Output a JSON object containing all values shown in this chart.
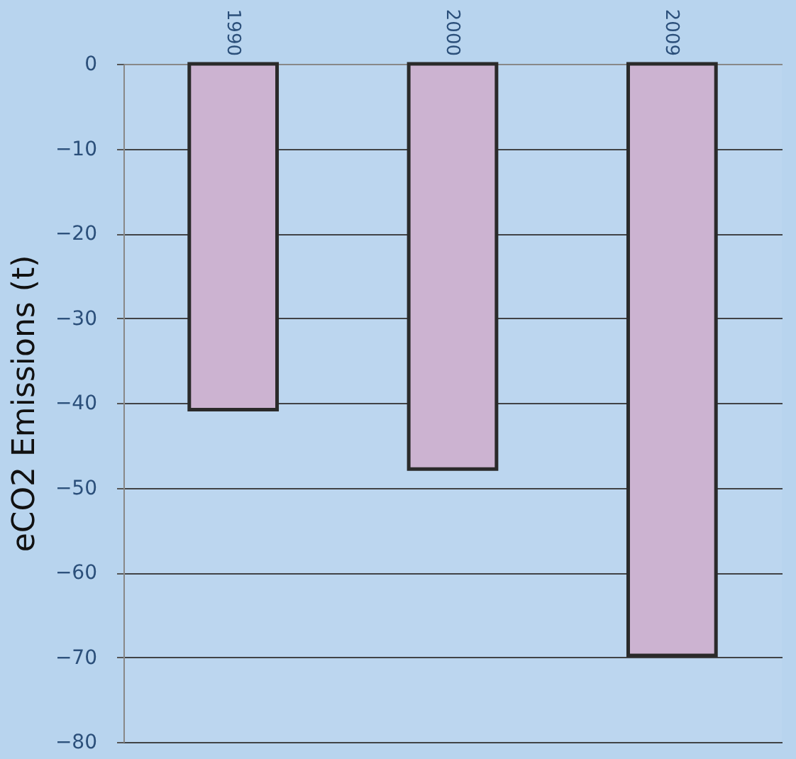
{
  "chart_data": {
    "type": "bar",
    "ylabel": "eCO2 Emissions (t)",
    "categories": [
      "1990",
      "2000",
      "2009"
    ],
    "values": [
      -40.8,
      -47.8,
      -69.8
    ],
    "color": "#ccb3d1",
    "ylim": [
      -80,
      0
    ],
    "yticks": [
      0,
      -10,
      -20,
      -30,
      -40,
      -50,
      -60,
      -70,
      -80
    ],
    "grid": "y"
  }
}
